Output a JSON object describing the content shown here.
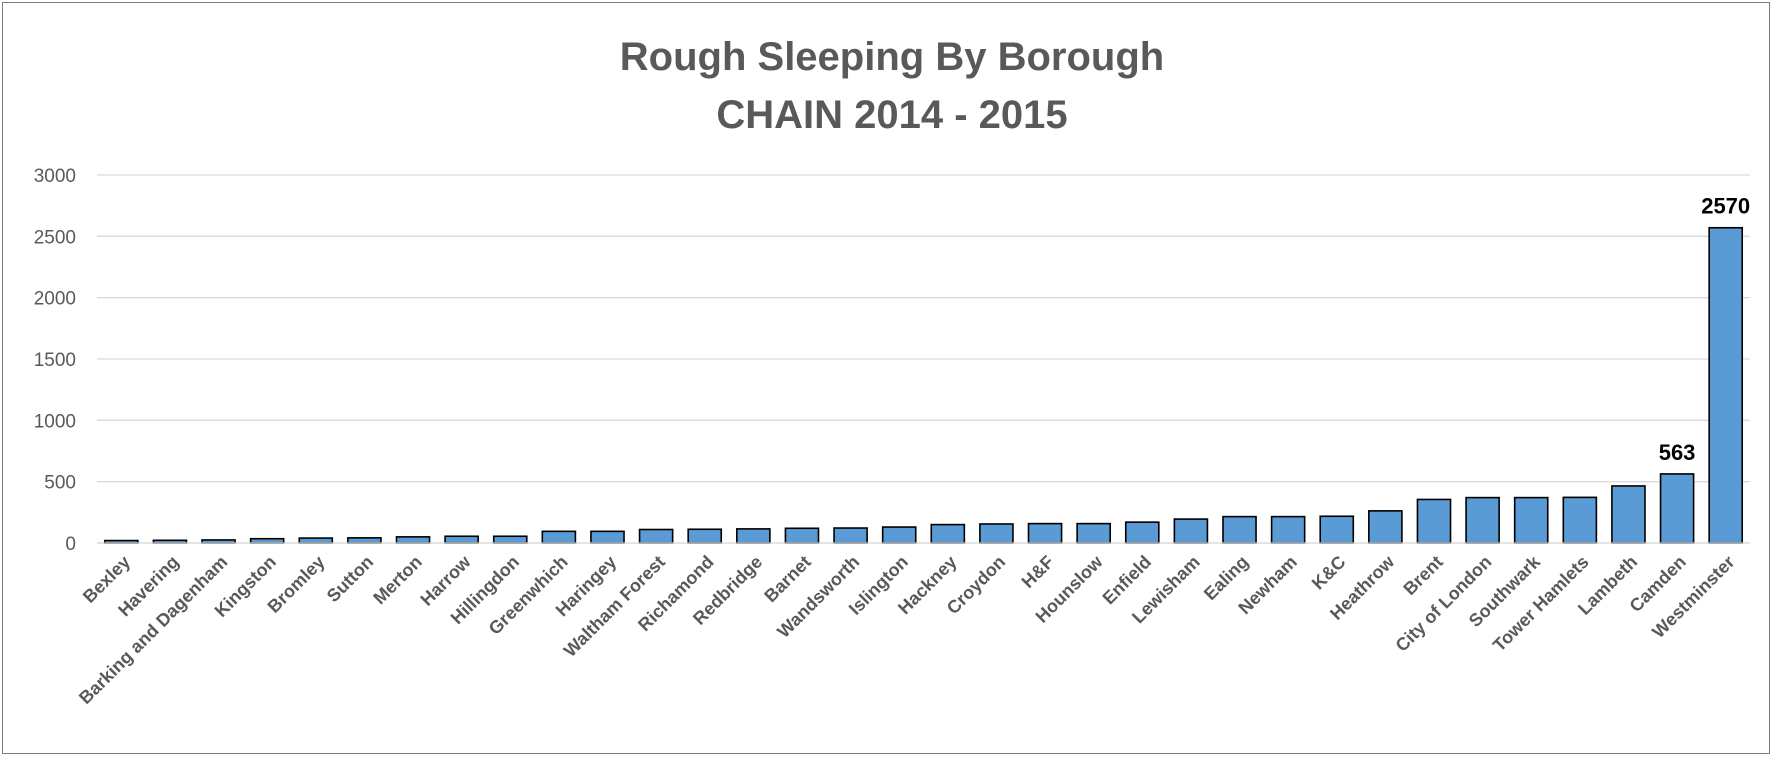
{
  "chart_data": {
    "type": "bar",
    "title": [
      "Rough Sleeping By Borough",
      "CHAIN 2014 - 2015"
    ],
    "xlabel": "",
    "ylabel": "",
    "ylim": [
      0,
      3000
    ],
    "yticks": [
      "0",
      "500",
      "1000",
      "1500",
      "2000",
      "2500",
      "3000"
    ],
    "grid": true,
    "categories": [
      "Bexley",
      "Havering",
      "Barking and Dagenham",
      "Kingston",
      "Bromley",
      "Sutton",
      "Merton",
      "Harrow",
      "Hillingdon",
      "Greenwhich",
      "Haringey",
      "Waltham Forest",
      "Richamond",
      "Redbridge",
      "Barnet",
      "Wandsworth",
      "Islington",
      "Hackney",
      "Croydon",
      "H&F",
      "Hounslow",
      "Enfield",
      "Lewisham",
      "Ealing",
      "Newham",
      "K&C",
      "Heathrow",
      "Brent",
      "City of London",
      "Southwark",
      "Tower Hamlets",
      "Lambeth",
      "Camden",
      "Westminster"
    ],
    "values": [
      20,
      22,
      25,
      35,
      40,
      42,
      50,
      55,
      55,
      95,
      95,
      110,
      112,
      115,
      120,
      122,
      130,
      150,
      155,
      158,
      158,
      170,
      195,
      215,
      215,
      218,
      262,
      355,
      370,
      370,
      372,
      465,
      563,
      2570
    ],
    "data_labels": [
      {
        "category": "Camden",
        "text": "563"
      },
      {
        "category": "Westminster",
        "text": "2570"
      }
    ],
    "colors": {
      "bar_fill": "#5b9bd5",
      "bar_stroke": "#000000",
      "gridline": "#d9d9d9",
      "text": "#595959"
    }
  }
}
